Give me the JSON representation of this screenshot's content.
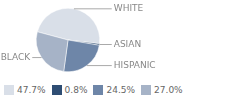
{
  "chart_data": {
    "type": "pie",
    "categories": [
      "WHITE",
      "ASIAN",
      "HISPANIC",
      "BLACK"
    ],
    "values": [
      47.7,
      0.8,
      24.5,
      27.0
    ],
    "value_labels": [
      "47.7%",
      "0.8%",
      "24.5%",
      "27.0%"
    ],
    "colors": [
      "#d9dfe8",
      "#2e4d73",
      "#6e86a8",
      "#a6b3c7"
    ],
    "legend": "bottom"
  }
}
